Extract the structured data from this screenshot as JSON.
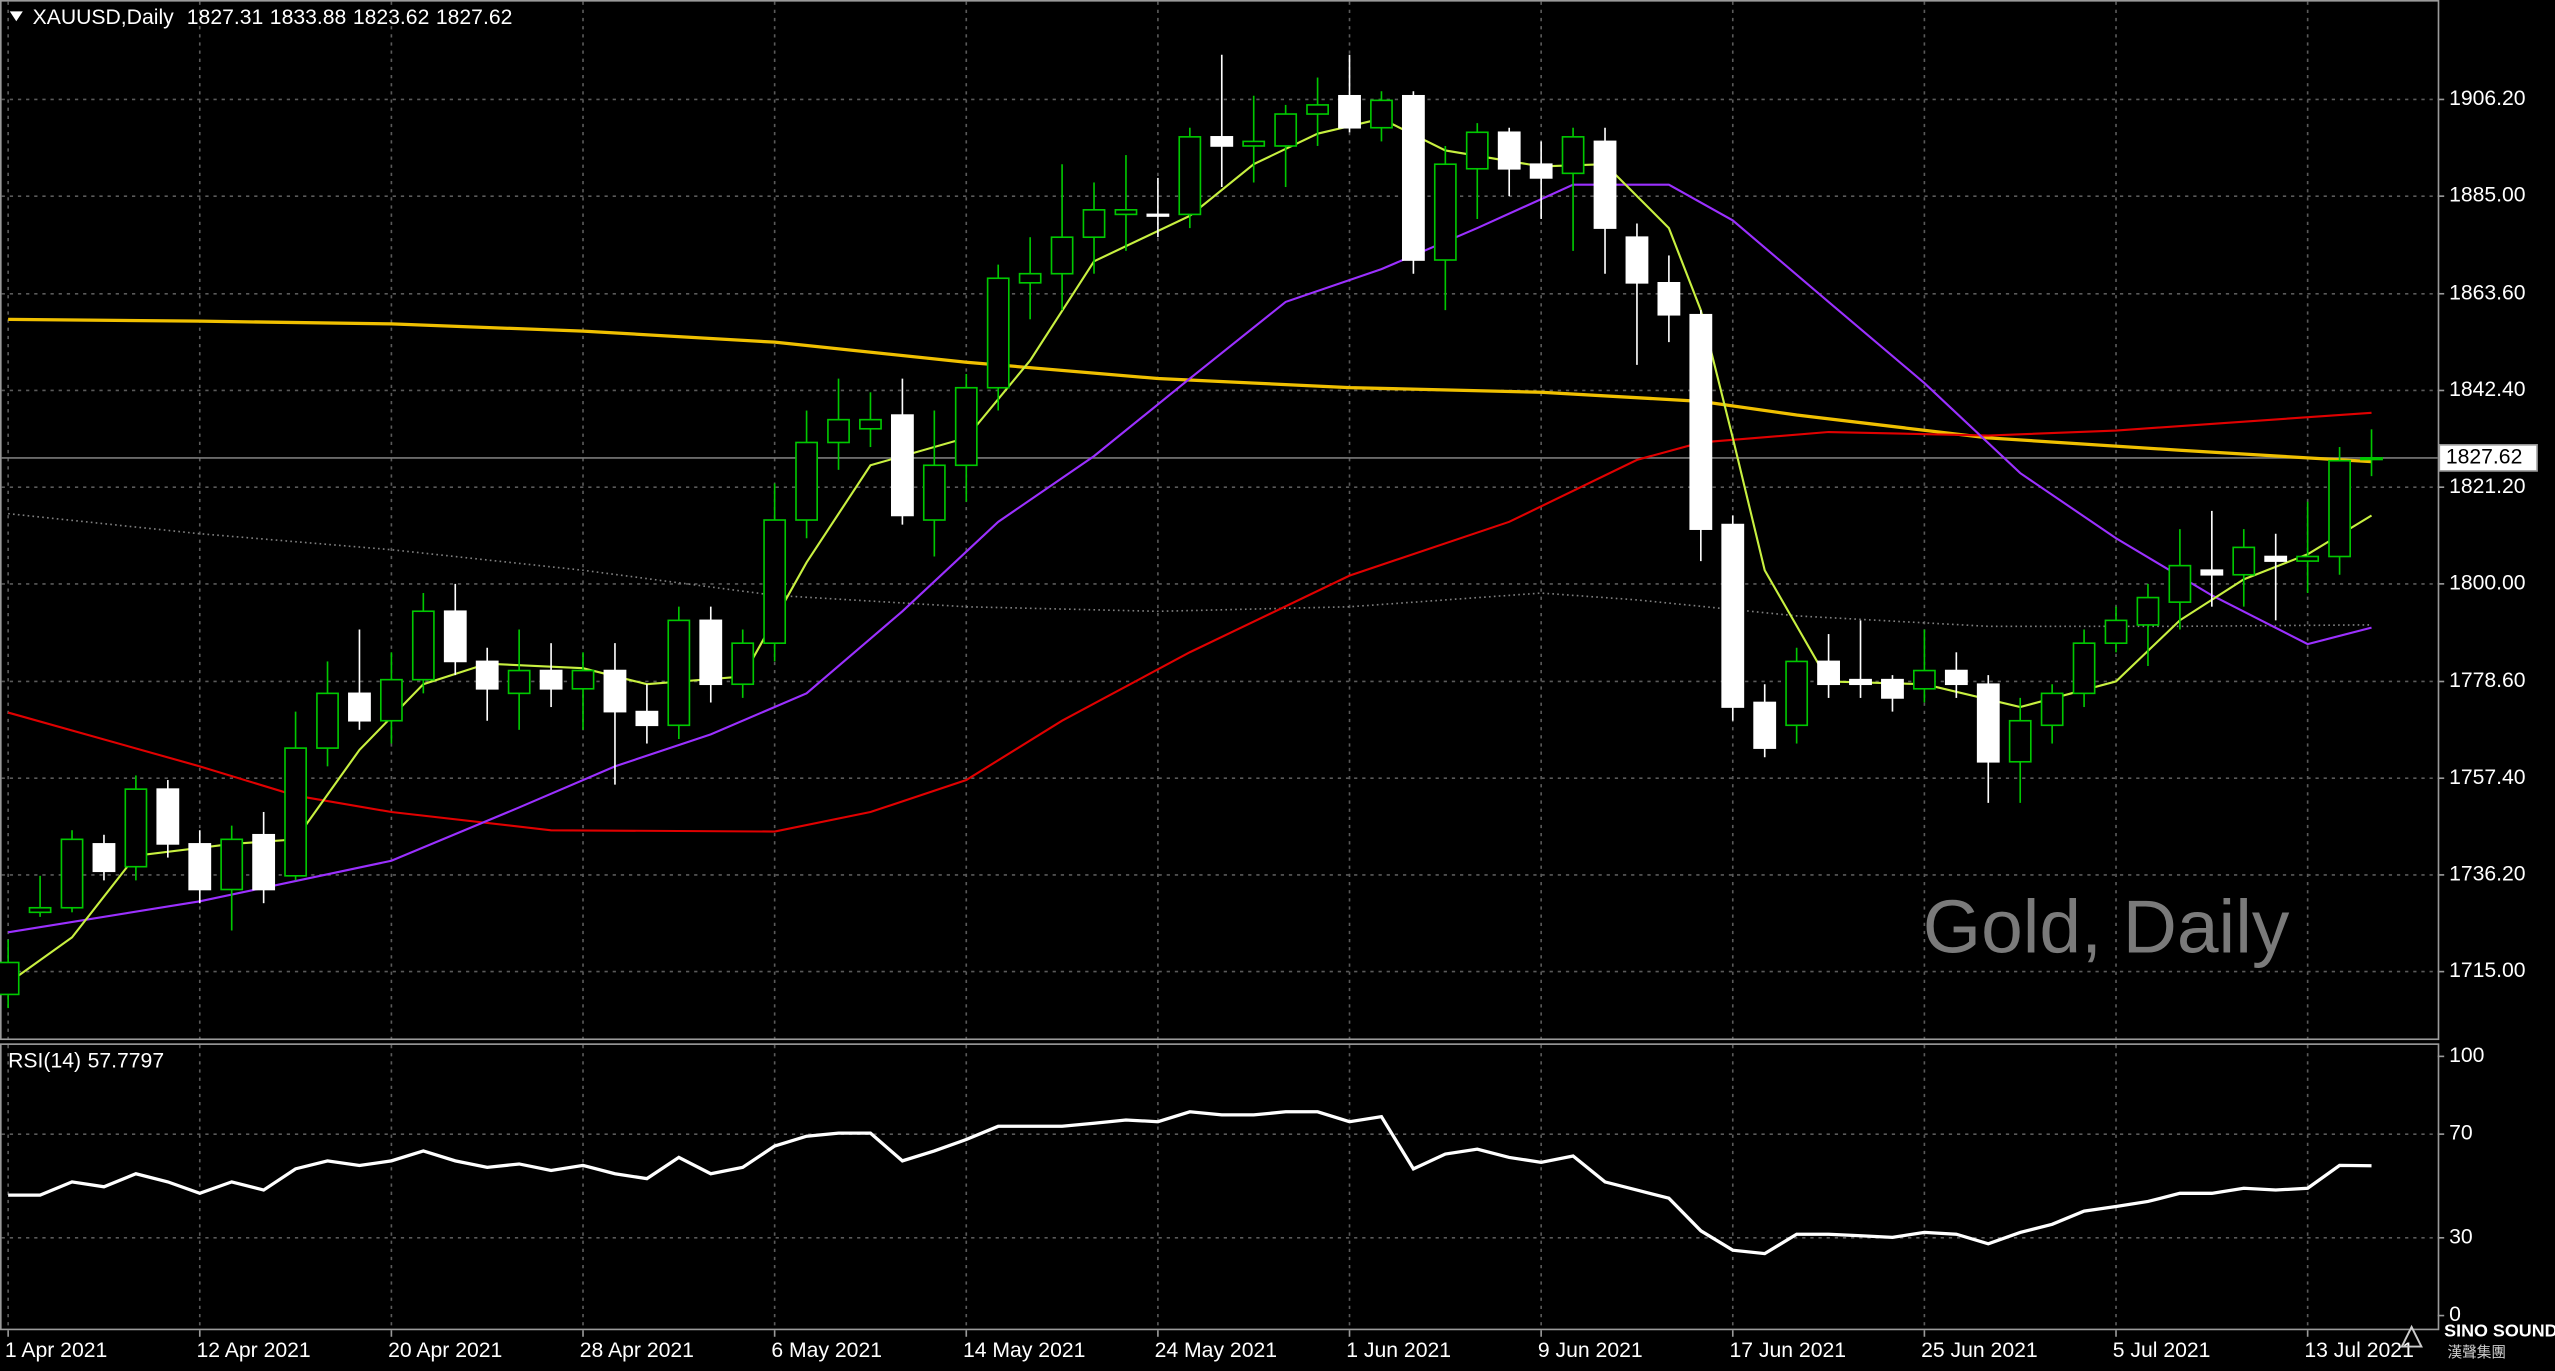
{
  "chart_data": [
    {
      "type": "candlestick",
      "symbol": "XAUUSD,Daily",
      "watermark": "Gold, Daily",
      "categories": [
        "1 Apr 2021",
        null,
        null,
        null,
        null,
        null,
        "12 Apr 2021",
        null,
        null,
        null,
        null,
        null,
        "20 Apr 2021",
        null,
        null,
        null,
        null,
        null,
        "28 Apr 2021",
        null,
        null,
        null,
        null,
        null,
        "6 May 2021",
        null,
        null,
        null,
        null,
        null,
        "14 May 2021",
        null,
        null,
        null,
        null,
        null,
        "24 May 2021",
        null,
        null,
        null,
        null,
        null,
        "1 Jun 2021",
        null,
        null,
        null,
        null,
        null,
        "9 Jun 2021",
        null,
        null,
        null,
        null,
        null,
        "17 Jun 2021",
        null,
        null,
        null,
        null,
        null,
        "25 Jun 2021",
        null,
        null,
        null,
        null,
        null,
        "5 Jul 2021",
        null,
        null,
        null,
        null,
        null,
        "13 Jul 2021",
        null,
        null
      ],
      "open": [
        1710,
        1728,
        1729,
        1743,
        1738,
        1755,
        1743,
        1733,
        1745,
        1736,
        1764,
        1776,
        1770,
        1779,
        1794,
        1783,
        1776,
        1781,
        1777,
        1781,
        1772,
        1769,
        1792,
        1778,
        1787,
        1814,
        1831,
        1834,
        1837,
        1814,
        1826,
        1843,
        1866,
        1868,
        1876,
        1881,
        1881,
        1881,
        1898,
        1896,
        1896,
        1903,
        1907,
        1900,
        1907,
        1871,
        1891,
        1899,
        1892,
        1890,
        1897,
        1876,
        1866,
        1859,
        1813,
        1774,
        1769,
        1783,
        1779,
        1779,
        1777,
        1781,
        1778,
        1761,
        1769,
        1776,
        1787,
        1791,
        1796,
        1803,
        1802,
        1806,
        1805,
        1806,
        1827.31
      ],
      "high": [
        1722,
        1736,
        1746,
        1745,
        1758,
        1757,
        1746,
        1747,
        1750,
        1772,
        1783,
        1790,
        1785,
        1798,
        1800,
        1786,
        1790,
        1787,
        1785,
        1787,
        1778,
        1795,
        1795,
        1790,
        1822,
        1838,
        1845,
        1842,
        1845,
        1838,
        1846,
        1870,
        1876,
        1892,
        1888,
        1894,
        1889,
        1900,
        1916,
        1907,
        1905,
        1911,
        1916,
        1908,
        1908,
        1896,
        1901,
        1900,
        1897,
        1900,
        1900,
        1879,
        1872,
        1860,
        1815,
        1778,
        1786,
        1789,
        1792,
        1780,
        1790,
        1785,
        1780,
        1775,
        1778,
        1790,
        1795,
        1800,
        1812,
        1816,
        1812,
        1811,
        1818,
        1830,
        1833.88
      ],
      "low": [
        1707,
        1727,
        1728,
        1735,
        1735,
        1740,
        1730,
        1724,
        1730,
        1735,
        1760,
        1768,
        1765,
        1776,
        1780,
        1770,
        1768,
        1773,
        1768,
        1756,
        1765,
        1766,
        1774,
        1775,
        1783,
        1810,
        1825,
        1830,
        1813,
        1806,
        1818,
        1838,
        1858,
        1860,
        1868,
        1873,
        1876,
        1878,
        1887,
        1888,
        1887,
        1896,
        1899,
        1897,
        1868,
        1860,
        1880,
        1885,
        1880,
        1873,
        1868,
        1848,
        1853,
        1805,
        1770,
        1762,
        1765,
        1775,
        1775,
        1772,
        1774,
        1775,
        1752,
        1752,
        1765,
        1773,
        1785,
        1782,
        1790,
        1795,
        1795,
        1792,
        1798,
        1802,
        1823.62
      ],
      "close": [
        1717,
        1729,
        1744,
        1737,
        1755,
        1743,
        1733,
        1744,
        1733,
        1764,
        1776,
        1770,
        1779,
        1794,
        1783,
        1777,
        1781,
        1777,
        1781,
        1772,
        1769,
        1792,
        1778,
        1787,
        1814,
        1831,
        1836,
        1836,
        1815,
        1826,
        1843,
        1867,
        1868,
        1876,
        1882,
        1882,
        1881,
        1898,
        1896,
        1897,
        1903,
        1905,
        1900,
        1906,
        1871,
        1892,
        1899,
        1891,
        1889,
        1898,
        1878,
        1866,
        1859,
        1812,
        1773,
        1764,
        1783,
        1778,
        1778,
        1775,
        1781,
        1778,
        1761,
        1770,
        1776,
        1787,
        1792,
        1797,
        1804,
        1802,
        1808,
        1805,
        1806,
        1827,
        1827.62
      ],
      "bull_color": "#00c800",
      "bear_color": "#ffffff",
      "ylim": [
        1700.35,
        1928.0
      ],
      "yticks": [
        {
          "value": 1906.2,
          "label": "1906.20"
        },
        {
          "value": 1885,
          "label": "1885.00"
        },
        {
          "value": 1863.6,
          "label": "1863.60"
        },
        {
          "value": 1842.4,
          "label": "1842.40"
        },
        {
          "value": 1821.2,
          "label": "1821.20"
        },
        {
          "value": 1800,
          "label": "1800.00"
        },
        {
          "value": 1778.6,
          "label": "1778.60"
        },
        {
          "value": 1757.4,
          "label": "1757.40"
        },
        {
          "value": 1736.2,
          "label": "1736.20"
        },
        {
          "value": 1715,
          "label": "1715.00"
        }
      ],
      "grid": true,
      "overlays": [
        {
          "color": "#808080",
          "style": "dotted",
          "x": [
            0,
            6,
            12,
            18,
            24,
            30,
            36,
            42,
            48,
            51,
            56,
            62,
            68,
            74
          ],
          "values": [
            1815.4,
            1811,
            1807.5,
            1803,
            1797.5,
            1795,
            1794,
            1795,
            1798,
            1796.5,
            1793,
            1790.7,
            1790.7,
            1791
          ]
        },
        {
          "color": "#f0c000",
          "style": "solid",
          "x": [
            0,
            6,
            12,
            18,
            24,
            30,
            36,
            42,
            48,
            53,
            56,
            62,
            68,
            74
          ],
          "values": [
            1858,
            1857.6,
            1857,
            1855.4,
            1853,
            1848.6,
            1845,
            1843,
            1842,
            1840,
            1837,
            1832,
            1829.3,
            1826.8
          ]
        },
        {
          "color": "#e00000",
          "style": "solid",
          "x": [
            0,
            6,
            9,
            12,
            17,
            24,
            27,
            30,
            33,
            37,
            42,
            47,
            51,
            53,
            57,
            62,
            66,
            74
          ],
          "values": [
            1771.8,
            1760,
            1753.6,
            1750,
            1746,
            1745.7,
            1750,
            1757,
            1770,
            1785,
            1801.8,
            1813.6,
            1827.2,
            1831,
            1833.3,
            1832.5,
            1833.6,
            1837.5
          ]
        },
        {
          "color": "#9b30ff",
          "style": "solid",
          "x": [
            0,
            6,
            12,
            16,
            19,
            22,
            25,
            28,
            31,
            34,
            37,
            40,
            43,
            46,
            49,
            52,
            54,
            57,
            60,
            63,
            66,
            69,
            72,
            74
          ],
          "values": [
            1723.6,
            1730.4,
            1739.3,
            1751,
            1760,
            1767,
            1776,
            1794,
            1813.6,
            1828,
            1845,
            1861.8,
            1869,
            1878,
            1887.5,
            1887.5,
            1879.7,
            1861.8,
            1844,
            1824.3,
            1810,
            1797.5,
            1786.8,
            1790.4
          ]
        },
        {
          "color": "#c8f040",
          "style": "solid",
          "x": [
            0,
            2,
            4,
            7,
            9,
            11,
            13,
            15,
            18,
            20,
            23,
            25,
            27,
            30,
            32,
            34,
            37,
            39,
            41,
            43,
            45,
            48,
            50,
            52,
            53,
            54,
            55,
            57,
            60,
            63,
            66,
            68,
            70,
            72,
            74
          ],
          "values": [
            1712.5,
            1722.5,
            1740.4,
            1743,
            1744,
            1763.6,
            1778,
            1782.5,
            1781.5,
            1778,
            1779.7,
            1804.7,
            1826,
            1832,
            1849,
            1870.7,
            1880.7,
            1892,
            1898.7,
            1902,
            1895,
            1891.5,
            1892,
            1878,
            1860,
            1832,
            1803,
            1778.6,
            1778,
            1773,
            1778.6,
            1792,
            1801,
            1806.5,
            1815
          ]
        }
      ]
    },
    {
      "type": "line",
      "title": "RSI(14)",
      "color": "#ffffff",
      "values": [
        46.5,
        46.5,
        51.6,
        49.7,
        54.7,
        51.6,
        47.2,
        51.6,
        48.4,
        56.6,
        59.7,
        57.9,
        59.7,
        63.5,
        59.7,
        57.2,
        58.5,
        56,
        57.9,
        54.7,
        52.8,
        61,
        54.7,
        57.2,
        65.4,
        69.2,
        70.4,
        70.4,
        59.7,
        63.5,
        67.9,
        73,
        73,
        73,
        74.2,
        75.5,
        74.8,
        78.6,
        77.4,
        77.4,
        78.6,
        78.6,
        74.8,
        76.7,
        56.6,
        62.3,
        64.2,
        61,
        59.1,
        61.6,
        51.6,
        48.4,
        45.3,
        32.7,
        25.2,
        23.9,
        31.4,
        31.4,
        30.8,
        30.2,
        32.1,
        31.4,
        27.7,
        32.1,
        35.2,
        40.3,
        42.1,
        44,
        47.2,
        47.2,
        49.1,
        48.4,
        49.1,
        57.9,
        57.7797
      ],
      "ylim": [
        0,
        100
      ],
      "yticks": [
        100,
        70,
        30,
        0
      ],
      "grid": true
    }
  ],
  "logo": {
    "name": "SINO SOUND",
    "subtitle": "漢聲集團"
  }
}
